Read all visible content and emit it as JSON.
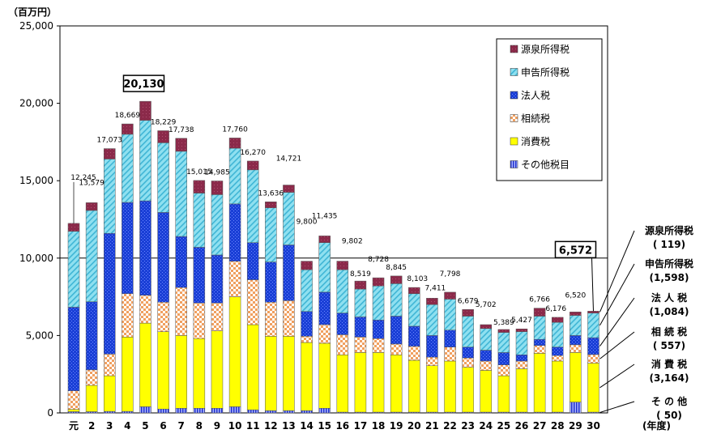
{
  "chart_data": {
    "type": "bar",
    "stacked": true,
    "ylabel": "（百万円）",
    "xlabel": "(年度)",
    "ylim": [
      0,
      25000
    ],
    "yticks": [
      0,
      5000,
      10000,
      15000,
      20000,
      25000
    ],
    "ytick_labels": [
      "0",
      "5,000",
      "10,000",
      "15,000",
      "20,000",
      "25,000"
    ],
    "reference_line": 10000,
    "categories": [
      "元",
      "2",
      "3",
      "4",
      "5",
      "6",
      "7",
      "8",
      "9",
      "10",
      "11",
      "12",
      "13",
      "14",
      "15",
      "16",
      "17",
      "18",
      "19",
      "20",
      "21",
      "22",
      "23",
      "24",
      "25",
      "26",
      "27",
      "28",
      "29",
      "30"
    ],
    "totals": [
      12245,
      13579,
      17073,
      18669,
      20130,
      18229,
      17738,
      15015,
      14985,
      17760,
      16270,
      13636,
      14721,
      9800,
      11435,
      9802,
      8519,
      8728,
      8845,
      8103,
      7411,
      7798,
      6679,
      5702,
      5389,
      5427,
      6766,
      6176,
      6520,
      6572
    ],
    "total_labels": [
      "12,245",
      "13,579",
      "17,073",
      "18,669",
      "20,130",
      "18,229",
      "17,738",
      "15,015",
      "14,985",
      "17,760",
      "16,270",
      "13,636",
      "14,721",
      "9,800",
      "11,435",
      "9,802",
      "8,519",
      "8,728",
      "8,845",
      "8,103",
      "7,411",
      "7,798",
      "6,679",
      "5,702",
      "5,389",
      "5,427",
      "6,766",
      "6,176",
      "6,520",
      "6,572"
    ],
    "highlight_max": {
      "index": 4,
      "label": "20,130"
    },
    "highlight_last": {
      "index": 29,
      "label": "6,572"
    },
    "series": [
      {
        "name": "その他税目",
        "color": "#3333cc",
        "values": [
          80,
          80,
          100,
          100,
          400,
          250,
          300,
          300,
          300,
          400,
          200,
          150,
          150,
          150,
          300,
          50,
          50,
          50,
          50,
          50,
          50,
          50,
          50,
          50,
          50,
          50,
          50,
          50,
          700,
          50
        ]
      },
      {
        "name": "消費税",
        "color": "#ffff00",
        "values": [
          150,
          1700,
          2300,
          4800,
          5400,
          5000,
          4700,
          4500,
          5000,
          7100,
          5500,
          4800,
          4800,
          4400,
          4200,
          3700,
          3850,
          3850,
          3700,
          3350,
          3000,
          3300,
          2900,
          2700,
          2350,
          2800,
          3800,
          3300,
          3200,
          3164
        ]
      },
      {
        "name": "相続税",
        "color": "#f5b070",
        "values": [
          1200,
          1000,
          1400,
          2800,
          1800,
          1900,
          3100,
          2300,
          1800,
          2300,
          2900,
          2200,
          2300,
          400,
          1200,
          1300,
          1000,
          900,
          700,
          900,
          550,
          900,
          600,
          600,
          700,
          500,
          500,
          350,
          500,
          557
        ]
      },
      {
        "name": "法人税",
        "color": "#2244dd",
        "values": [
          5400,
          4400,
          7800,
          5900,
          6100,
          5800,
          3300,
          3600,
          3100,
          3700,
          2400,
          2600,
          3600,
          1600,
          2100,
          1400,
          1300,
          1200,
          1800,
          1300,
          1400,
          1100,
          700,
          700,
          800,
          400,
          400,
          550,
          600,
          1084
        ]
      },
      {
        "name": "申告所得税",
        "color": "#7fd4e8",
        "values": [
          4900,
          5900,
          4800,
          4400,
          5200,
          4500,
          5500,
          3500,
          3900,
          3600,
          4700,
          3500,
          3400,
          2700,
          3200,
          2800,
          1800,
          2200,
          2100,
          2100,
          2000,
          2000,
          2000,
          1400,
          1300,
          1500,
          1500,
          1600,
          1300,
          1598
        ]
      },
      {
        "name": "源泉所得税",
        "color": "#8b2a4a",
        "values": [
          515,
          499,
          673,
          669,
          1230,
          779,
          838,
          815,
          885,
          660,
          570,
          386,
          471,
          550,
          435,
          552,
          519,
          528,
          495,
          403,
          411,
          448,
          429,
          252,
          189,
          177,
          516,
          326,
          220,
          119
        ]
      }
    ],
    "legend_order": [
      "源泉所得税",
      "申告所得税",
      "法人税",
      "相続税",
      "消費税",
      "その他税目"
    ],
    "right_annotations": [
      {
        "name": "源泉所得税",
        "value": "( 119)"
      },
      {
        "name": "申告所得税",
        "value": "(1,598)"
      },
      {
        "name": "法 人 税",
        "value": "(1,084)"
      },
      {
        "name": "相 続 税",
        "value": "( 557)"
      },
      {
        "name": "消 費 税",
        "value": "(3,164)"
      },
      {
        "name": "そ の 他",
        "value": "( 50)"
      }
    ]
  }
}
